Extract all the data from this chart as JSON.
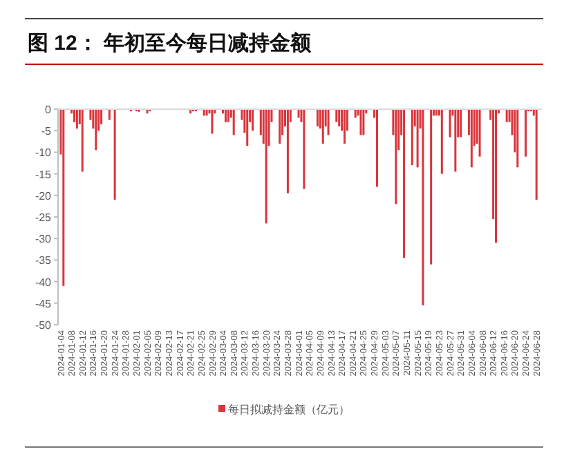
{
  "chart_data": {
    "type": "bar",
    "title": "图 12： 年初至今每日减持金额",
    "legend": "bottom",
    "xlim": [
      "2024-01-03",
      "2024-06-30"
    ],
    "xticks": [
      "2024-01-04",
      "2024-01-08",
      "2024-01-12",
      "2024-01-16",
      "2024-01-20",
      "2024-01-24",
      "2024-01-28",
      "2024-02-01",
      "2024-02-05",
      "2024-02-09",
      "2024-02-13",
      "2024-02-17",
      "2024-02-21",
      "2024-02-25",
      "2024-02-29",
      "2024-03-04",
      "2024-03-08",
      "2024-03-12",
      "2024-03-16",
      "2024-03-20",
      "2024-03-24",
      "2024-03-28",
      "2024-04-01",
      "2024-04-05",
      "2024-04-09",
      "2024-04-13",
      "2024-04-17",
      "2024-04-21",
      "2024-04-25",
      "2024-04-29",
      "2024-05-03",
      "2024-05-07",
      "2024-05-11",
      "2024-05-15",
      "2024-05-19",
      "2024-05-23",
      "2024-05-27",
      "2024-05-31",
      "2024-06-04",
      "2024-06-08",
      "2024-06-12",
      "2024-06-16",
      "2024-06-20",
      "2024-06-24",
      "2024-06-28"
    ],
    "ylim": [
      -50,
      0
    ],
    "yticks": [
      0,
      -5,
      -10,
      -15,
      -20,
      -25,
      -30,
      -35,
      -40,
      -45,
      -50
    ],
    "series": [
      {
        "name": "每日拟减持金额（亿元）",
        "color": "#d9353b",
        "x": [
          "2024-01-04",
          "2024-01-05",
          "2024-01-08",
          "2024-01-09",
          "2024-01-10",
          "2024-01-11",
          "2024-01-12",
          "2024-01-15",
          "2024-01-16",
          "2024-01-17",
          "2024-01-18",
          "2024-01-19",
          "2024-01-22",
          "2024-01-24",
          "2024-01-30",
          "2024-02-01",
          "2024-02-02",
          "2024-02-05",
          "2024-02-06",
          "2024-02-21",
          "2024-02-22",
          "2024-02-23",
          "2024-02-26",
          "2024-02-27",
          "2024-02-28",
          "2024-02-29",
          "2024-03-01",
          "2024-03-04",
          "2024-03-05",
          "2024-03-06",
          "2024-03-07",
          "2024-03-08",
          "2024-03-11",
          "2024-03-12",
          "2024-03-13",
          "2024-03-14",
          "2024-03-15",
          "2024-03-18",
          "2024-03-19",
          "2024-03-20",
          "2024-03-21",
          "2024-03-22",
          "2024-03-25",
          "2024-03-26",
          "2024-03-27",
          "2024-03-28",
          "2024-03-29",
          "2024-04-01",
          "2024-04-02",
          "2024-04-03",
          "2024-04-08",
          "2024-04-09",
          "2024-04-10",
          "2024-04-11",
          "2024-04-12",
          "2024-04-15",
          "2024-04-16",
          "2024-04-17",
          "2024-04-18",
          "2024-04-19",
          "2024-04-22",
          "2024-04-23",
          "2024-04-24",
          "2024-04-25",
          "2024-04-26",
          "2024-04-29",
          "2024-04-30",
          "2024-05-06",
          "2024-05-07",
          "2024-05-08",
          "2024-05-09",
          "2024-05-10",
          "2024-05-13",
          "2024-05-14",
          "2024-05-15",
          "2024-05-16",
          "2024-05-17",
          "2024-05-20",
          "2024-05-21",
          "2024-05-22",
          "2024-05-23",
          "2024-05-24",
          "2024-05-27",
          "2024-05-28",
          "2024-05-29",
          "2024-05-30",
          "2024-05-31",
          "2024-06-03",
          "2024-06-04",
          "2024-06-05",
          "2024-06-06",
          "2024-06-07",
          "2024-06-11",
          "2024-06-12",
          "2024-06-13",
          "2024-06-14",
          "2024-06-17",
          "2024-06-18",
          "2024-06-19",
          "2024-06-20",
          "2024-06-21",
          "2024-06-24",
          "2024-06-25",
          "2024-06-26",
          "2024-06-27",
          "2024-06-28"
        ],
        "values": [
          -10.5,
          -41,
          -1,
          -3,
          -4.5,
          -3.5,
          -14.5,
          -2.5,
          -4.5,
          -9.5,
          -5,
          -3.5,
          -2.5,
          -21,
          -0.5,
          -0.5,
          -0.6,
          -1,
          -0.5,
          -1,
          -0.5,
          -0.5,
          -1.5,
          -1.5,
          -1,
          -5.7,
          -1,
          -1,
          -3,
          -3,
          -2,
          -6,
          -2.5,
          -5.5,
          -8.5,
          -3,
          -5,
          -6,
          -8,
          -26.5,
          -8.5,
          -3,
          -8,
          -6,
          -4,
          -19.5,
          -3,
          -2,
          -3,
          -18.5,
          -4,
          -4.5,
          -8,
          -4,
          -6,
          -3,
          -4,
          -5,
          -8,
          -5,
          -2,
          -1.5,
          -6,
          -6,
          -1,
          -2,
          -18,
          -6,
          -22,
          -9.5,
          -6,
          -34.5,
          -13,
          -4,
          -13.5,
          -4.5,
          -45.5,
          -36,
          -1.5,
          -1.5,
          -1.5,
          -15,
          -6.5,
          -1.5,
          -14.5,
          -6.5,
          -6.5,
          -6,
          -13.5,
          -8.5,
          -8,
          -11,
          -2.5,
          -25.5,
          -31,
          -1,
          -3,
          -3,
          -6,
          -10,
          -13.5,
          -11,
          -0.5,
          -0.5,
          -1.5,
          -21
        ]
      }
    ]
  }
}
